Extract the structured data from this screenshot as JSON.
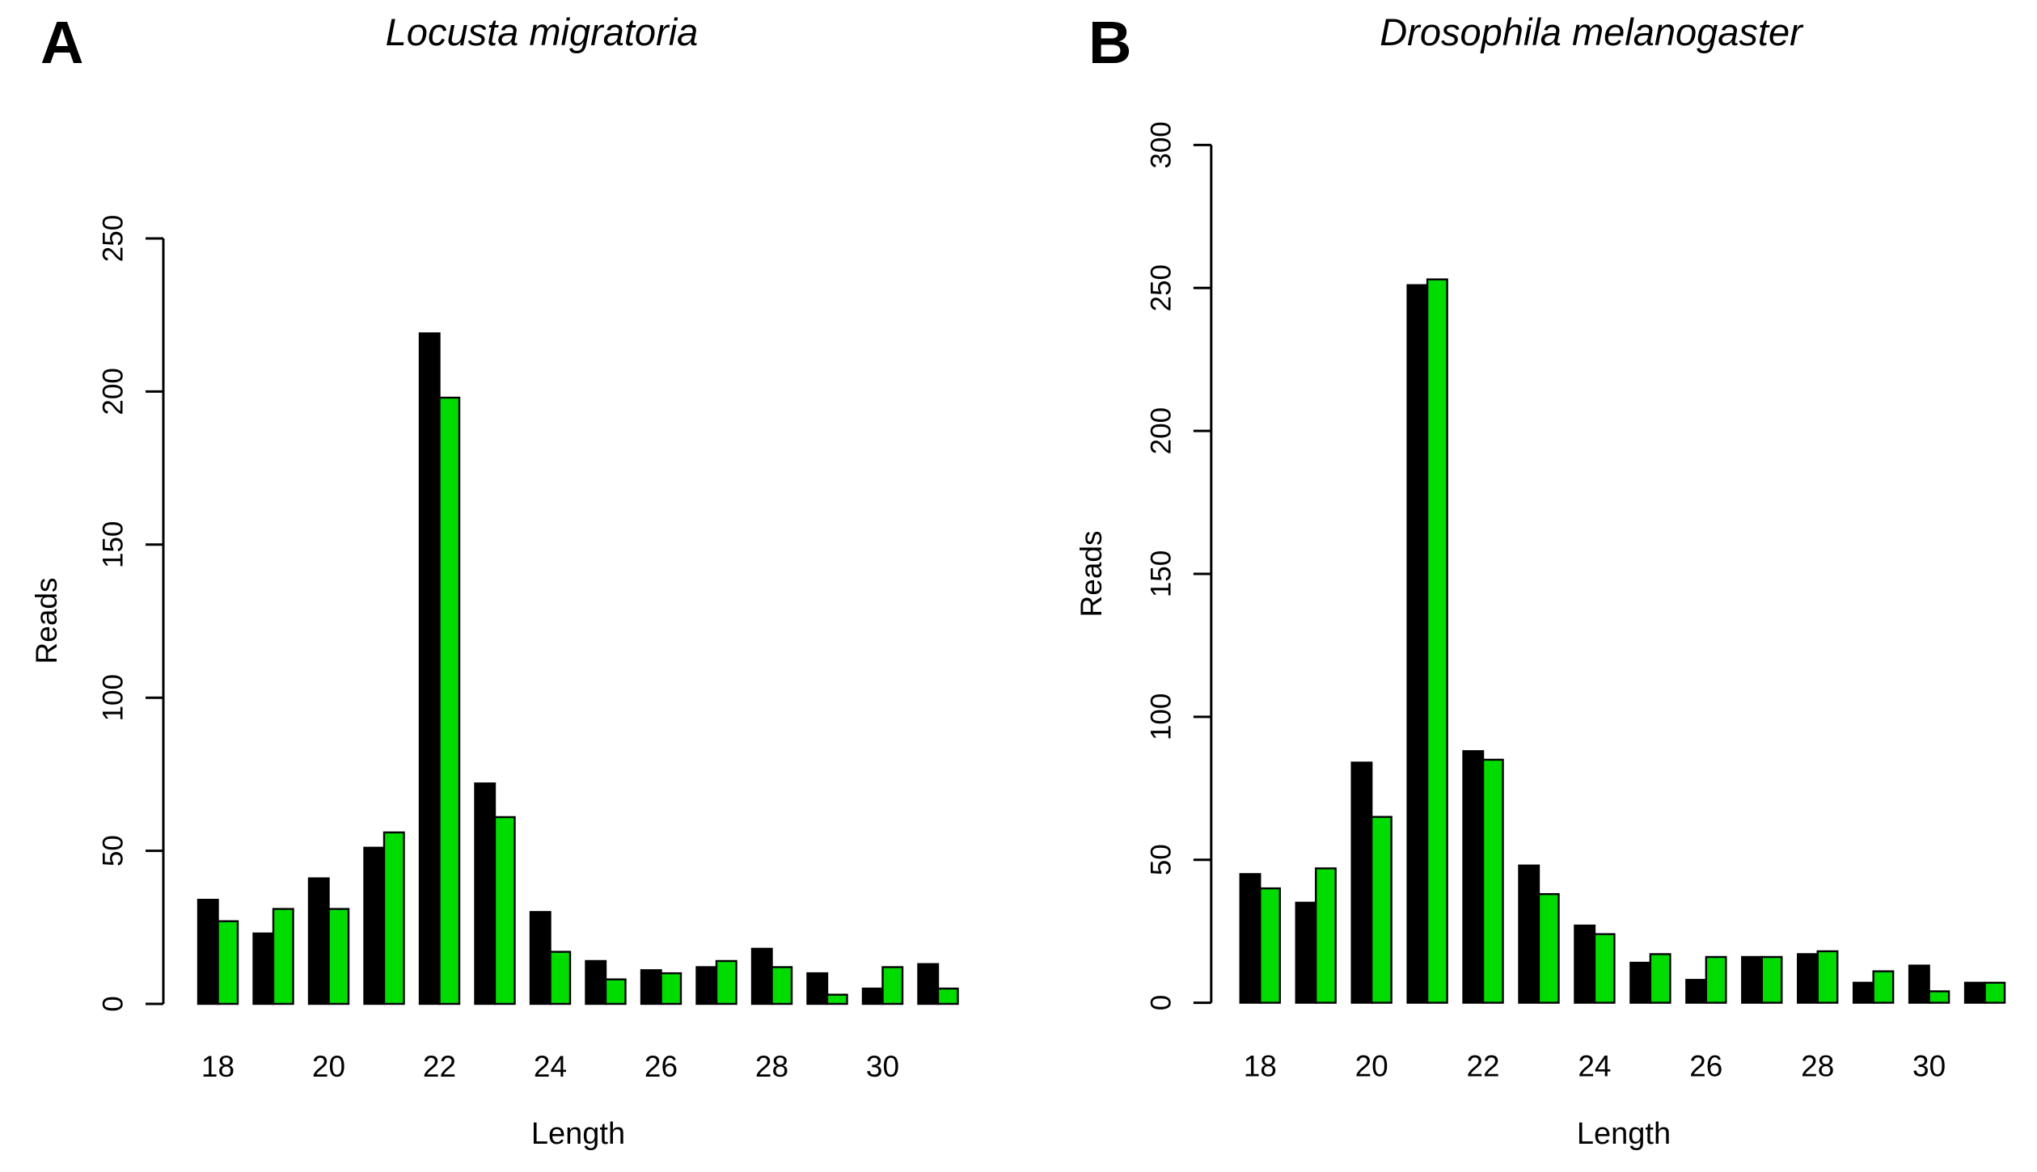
{
  "figure": {
    "background": "#ffffff",
    "series_colors": {
      "black": "#000000",
      "green": "#00dc00"
    }
  },
  "panels": [
    {
      "corner_label": "A",
      "title": "Locusta migratoria",
      "xlabel": "Length",
      "ylabel": "Reads",
      "yticks": [
        0,
        50,
        100,
        150,
        200,
        250
      ],
      "xticks": [
        "18",
        "20",
        "22",
        "24",
        "26",
        "28",
        "30"
      ]
    },
    {
      "corner_label": "B",
      "title": "Drosophila melanogaster",
      "xlabel": "Length",
      "ylabel": "Reads",
      "yticks": [
        0,
        50,
        100,
        150,
        200,
        250,
        300
      ],
      "xticks": [
        "18",
        "20",
        "22",
        "24",
        "26",
        "28",
        "30"
      ]
    }
  ],
  "chart_data": [
    {
      "type": "bar",
      "panel": "A",
      "title": "Locusta migratoria",
      "xlabel": "Length",
      "ylabel": "Reads",
      "ylim": [
        0,
        250
      ],
      "yticks": [
        0,
        50,
        100,
        150,
        200,
        250
      ],
      "grid": false,
      "legend": "none",
      "categories": [
        18,
        19,
        20,
        21,
        22,
        23,
        24,
        25,
        26,
        27,
        28,
        29,
        30,
        31
      ],
      "labeled_categories": [
        18,
        20,
        22,
        24,
        26,
        28,
        30
      ],
      "series": [
        {
          "name": "black",
          "color": "#000000",
          "values": [
            34,
            23,
            41,
            51,
            219,
            72,
            30,
            14,
            11,
            12,
            18,
            10,
            5,
            13
          ]
        },
        {
          "name": "green",
          "color": "#00dc00",
          "values": [
            27,
            31,
            31,
            56,
            198,
            61,
            17,
            8,
            10,
            14,
            12,
            3,
            12,
            5
          ]
        }
      ]
    },
    {
      "type": "bar",
      "panel": "B",
      "title": "Drosophila melanogaster",
      "xlabel": "Length",
      "ylabel": "Reads",
      "ylim": [
        0,
        300
      ],
      "yticks": [
        0,
        50,
        100,
        150,
        200,
        250,
        300
      ],
      "grid": false,
      "legend": "none",
      "categories": [
        18,
        19,
        20,
        21,
        22,
        23,
        24,
        25,
        26,
        27,
        28,
        29,
        30,
        31
      ],
      "labeled_categories": [
        18,
        20,
        22,
        24,
        26,
        28,
        30
      ],
      "series": [
        {
          "name": "black",
          "color": "#000000",
          "values": [
            45,
            35,
            84,
            251,
            88,
            48,
            27,
            14,
            8,
            16,
            17,
            7,
            13,
            7
          ]
        },
        {
          "name": "green",
          "color": "#00dc00",
          "values": [
            40,
            47,
            65,
            253,
            85,
            38,
            24,
            17,
            16,
            16,
            18,
            11,
            4,
            7
          ]
        }
      ]
    }
  ]
}
